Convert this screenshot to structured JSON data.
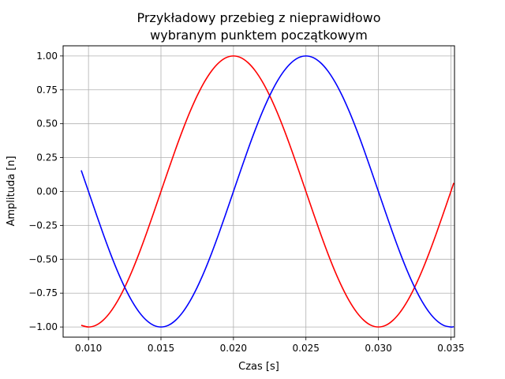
{
  "chart_data": {
    "type": "line",
    "title_lines": [
      "Przykładowy przebieg z nieprawidłowo",
      "wybranym punktem początkowym"
    ],
    "xlabel": "Czas [s]",
    "ylabel": "Amplituda [n]",
    "xlim": [
      0.00825,
      0.03525
    ],
    "ylim": [
      -1.075,
      1.075
    ],
    "grid": true,
    "x_ticks": [
      0.01,
      0.015,
      0.02,
      0.025,
      0.03,
      0.035
    ],
    "x_tick_labels": [
      "0.010",
      "0.015",
      "0.020",
      "0.025",
      "0.030",
      "0.035"
    ],
    "y_ticks": [
      -1.0,
      -0.75,
      -0.5,
      -0.25,
      0.0,
      0.25,
      0.5,
      0.75,
      1.0
    ],
    "y_tick_labels": [
      "−1.00",
      "−0.75",
      "−0.50",
      "−0.25",
      "0.00",
      "0.25",
      "0.50",
      "0.75",
      "1.00"
    ],
    "series": [
      {
        "color": "#ff0000",
        "x": [
          0.0095,
          0.01,
          0.0105,
          0.011,
          0.0115,
          0.012,
          0.0125,
          0.013,
          0.0135,
          0.014,
          0.0145,
          0.015,
          0.0155,
          0.016,
          0.0165,
          0.017,
          0.0175,
          0.018,
          0.0185,
          0.019,
          0.0195,
          0.02,
          0.0205,
          0.021,
          0.0215,
          0.022,
          0.0225,
          0.023,
          0.0235,
          0.024,
          0.0245,
          0.025,
          0.0255,
          0.026,
          0.0265,
          0.027,
          0.0275,
          0.028,
          0.0285,
          0.029,
          0.0295,
          0.03,
          0.0305,
          0.031,
          0.0315,
          0.032,
          0.0325,
          0.033,
          0.0335,
          0.034,
          0.0345,
          0.035,
          0.0352
        ],
        "y": [
          -0.988,
          -1.0,
          -0.988,
          -0.951,
          -0.891,
          -0.809,
          -0.707,
          -0.588,
          -0.454,
          -0.309,
          -0.156,
          0.0,
          0.156,
          0.309,
          0.454,
          0.588,
          0.707,
          0.809,
          0.891,
          0.951,
          0.988,
          1.0,
          0.988,
          0.951,
          0.891,
          0.809,
          0.707,
          0.588,
          0.454,
          0.309,
          0.156,
          0.0,
          -0.156,
          -0.309,
          -0.454,
          -0.588,
          -0.707,
          -0.809,
          -0.891,
          -0.951,
          -0.988,
          -1.0,
          -0.988,
          -0.951,
          -0.891,
          -0.809,
          -0.707,
          -0.588,
          -0.454,
          -0.309,
          -0.156,
          0.0,
          0.063
        ]
      },
      {
        "color": "#0000ff",
        "x": [
          0.0095,
          0.01,
          0.0105,
          0.011,
          0.0115,
          0.012,
          0.0125,
          0.013,
          0.0135,
          0.014,
          0.0145,
          0.015,
          0.0155,
          0.016,
          0.0165,
          0.017,
          0.0175,
          0.018,
          0.0185,
          0.019,
          0.0195,
          0.02,
          0.0205,
          0.021,
          0.0215,
          0.022,
          0.0225,
          0.023,
          0.0235,
          0.024,
          0.0245,
          0.025,
          0.0255,
          0.026,
          0.0265,
          0.027,
          0.0275,
          0.028,
          0.0285,
          0.029,
          0.0295,
          0.03,
          0.0305,
          0.031,
          0.0315,
          0.032,
          0.0325,
          0.033,
          0.0335,
          0.034,
          0.0345,
          0.035,
          0.0352
        ],
        "y": [
          0.156,
          0.0,
          -0.156,
          -0.309,
          -0.454,
          -0.588,
          -0.707,
          -0.809,
          -0.891,
          -0.951,
          -0.988,
          -1.0,
          -0.988,
          -0.951,
          -0.891,
          -0.809,
          -0.707,
          -0.588,
          -0.454,
          -0.309,
          -0.156,
          0.0,
          0.156,
          0.309,
          0.454,
          0.588,
          0.707,
          0.809,
          0.891,
          0.951,
          0.988,
          1.0,
          0.988,
          0.951,
          0.891,
          0.809,
          0.707,
          0.588,
          0.454,
          0.309,
          0.156,
          0.0,
          -0.156,
          -0.309,
          -0.454,
          -0.588,
          -0.707,
          -0.809,
          -0.891,
          -0.951,
          -0.988,
          -1.0,
          -0.998
        ]
      }
    ]
  }
}
